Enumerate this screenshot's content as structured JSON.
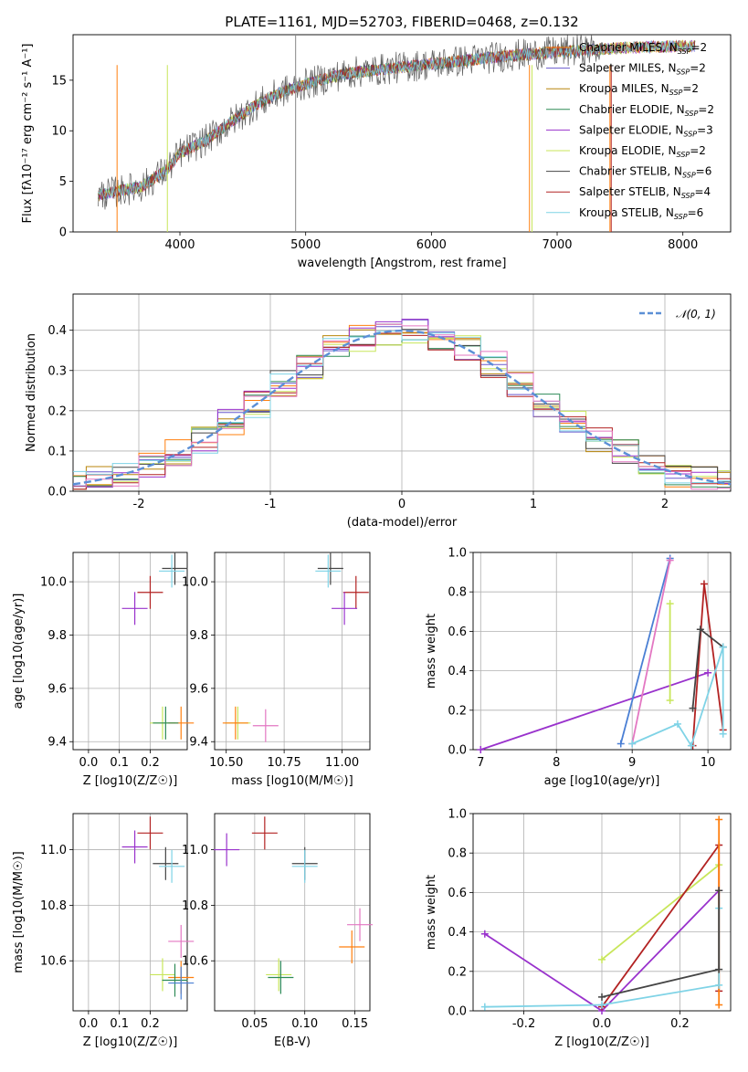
{
  "title": "PLATE=1161, MJD=52703, FIBERID=0468, z=0.132",
  "legend": [
    {
      "label": "Chabrier MILES, N",
      "sub": "SSP",
      "rest": "=2",
      "color": "#ff7f0e"
    },
    {
      "label": "Salpeter MILES, N",
      "sub": "SSP",
      "rest": "=2",
      "color": "#6a5acd"
    },
    {
      "label": "Kroupa MILES, N",
      "sub": "SSP",
      "rest": "=2",
      "color": "#b8860b"
    },
    {
      "label": "Chabrier ELODIE, N",
      "sub": "SSP",
      "rest": "=2",
      "color": "#2e8b57"
    },
    {
      "label": "Salpeter ELODIE, N",
      "sub": "SSP",
      "rest": "=3",
      "color": "#9932cc"
    },
    {
      "label": "Kroupa ELODIE, N",
      "sub": "SSP",
      "rest": "=2",
      "color": "#c8e65a"
    },
    {
      "label": "Chabrier STELIB, N",
      "sub": "SSP",
      "rest": "=6",
      "color": "#444444"
    },
    {
      "label": "Salpeter STELIB, N",
      "sub": "SSP",
      "rest": "=4",
      "color": "#b22222"
    },
    {
      "label": "Kroupa STELIB, N",
      "sub": "SSP",
      "rest": "=6",
      "color": "#7fd3e6"
    }
  ],
  "chart_data": [
    {
      "type": "line",
      "xlabel": "wavelength [Angstrom, rest frame]",
      "ylabel": "Flux [fλ10⁻¹⁷ erg cm⁻² s⁻¹ A⁻¹]",
      "xlim": [
        3150,
        8380
      ],
      "ylim": [
        0,
        19.5
      ],
      "xticks": [
        4000,
        5000,
        6000,
        7000,
        8000
      ],
      "yticks": [
        0,
        5,
        10,
        15
      ],
      "continuum": [
        [
          3350,
          3.6
        ],
        [
          3500,
          4.0
        ],
        [
          3700,
          4.5
        ],
        [
          3900,
          6.2
        ],
        [
          4000,
          7.8
        ],
        [
          4200,
          9.0
        ],
        [
          4400,
          10.8
        ],
        [
          4600,
          12.5
        ],
        [
          4800,
          13.8
        ],
        [
          5000,
          14.6
        ],
        [
          5200,
          15.3
        ],
        [
          5400,
          15.8
        ],
        [
          5700,
          16.2
        ],
        [
          6000,
          16.6
        ],
        [
          6300,
          17.0
        ],
        [
          6600,
          17.4
        ],
        [
          7000,
          17.8
        ],
        [
          7500,
          18.2
        ],
        [
          8100,
          18.4
        ]
      ]
    },
    {
      "type": "line",
      "xlabel": "(data-model)/error",
      "ylabel": "Normed distribution",
      "xlim": [
        -2.5,
        2.5
      ],
      "ylim": [
        0,
        0.49
      ],
      "xticks": [
        -2,
        -1,
        0,
        1,
        2
      ],
      "yticks": [
        0,
        0.1,
        0.2,
        0.3,
        0.4
      ],
      "legend": "𝒩(0, 1)"
    },
    {
      "type": "scatter",
      "xlabel": "Z [log10(Z/Z☉)]",
      "ylabel": "age  [log10(age/yr)]",
      "xlim": [
        -0.05,
        0.32
      ],
      "ylim": [
        9.37,
        10.11
      ],
      "xticks": [
        0,
        0.1,
        0.2
      ],
      "yticks": [
        9.4,
        9.6,
        9.8,
        10.0
      ],
      "points": [
        [
          0.28,
          10.05,
          "#444444"
        ],
        [
          0.27,
          10.04,
          "#7fd3e6"
        ],
        [
          0.2,
          9.96,
          "#b22222"
        ],
        [
          0.15,
          9.9,
          "#9932cc"
        ],
        [
          0.24,
          9.47,
          "#c8e65a"
        ],
        [
          0.3,
          9.47,
          "#ff7f0e"
        ],
        [
          0.25,
          9.47,
          "#2e8b57"
        ]
      ]
    },
    {
      "type": "scatter",
      "xlabel": "mass [log10(M/M☉)]",
      "xlim": [
        10.45,
        11.12
      ],
      "ylim": [
        9.37,
        10.11
      ],
      "xticks": [
        10.5,
        10.75,
        11.0
      ],
      "yticks": [
        9.4,
        9.6,
        9.8,
        10.0
      ],
      "points": [
        [
          10.95,
          10.05,
          "#444444"
        ],
        [
          10.94,
          10.04,
          "#7fd3e6"
        ],
        [
          11.06,
          9.96,
          "#b22222"
        ],
        [
          11.01,
          9.9,
          "#9932cc"
        ],
        [
          10.55,
          9.47,
          "#c8e65a"
        ],
        [
          10.54,
          9.47,
          "#ff7f0e"
        ],
        [
          10.67,
          9.46,
          "#e377c2"
        ]
      ]
    },
    {
      "type": "line",
      "xlabel": "age  [log10(age/yr)]",
      "ylabel": "mass weight",
      "xlim": [
        6.9,
        10.3
      ],
      "ylim": [
        0,
        1
      ],
      "xticks": [
        7,
        8,
        9,
        10
      ],
      "yticks": [
        0,
        0.2,
        0.4,
        0.6,
        0.8,
        1.0
      ],
      "series": [
        {
          "color": "#9932cc",
          "x": [
            7.0,
            10.0
          ],
          "y": [
            0.0,
            0.39
          ]
        },
        {
          "color": "#4a7fd4",
          "x": [
            8.85,
            9.5
          ],
          "y": [
            0.03,
            0.97
          ]
        },
        {
          "color": "#e377c2",
          "x": [
            9.0,
            9.5
          ],
          "y": [
            0.03,
            0.96
          ]
        },
        {
          "color": "#c8e65a",
          "x": [
            9.5,
            9.5
          ],
          "y": [
            0.25,
            0.74
          ]
        },
        {
          "color": "#b22222",
          "x": [
            9.8,
            9.95,
            10.2
          ],
          "y": [
            0.02,
            0.84,
            0.1
          ]
        },
        {
          "color": "#444444",
          "x": [
            9.8,
            9.9,
            10.2
          ],
          "y": [
            0.21,
            0.61,
            0.52
          ]
        },
        {
          "color": "#7fd3e6",
          "x": [
            9.0,
            9.6,
            9.78,
            10.2,
            10.2
          ],
          "y": [
            0.03,
            0.13,
            0.02,
            0.52,
            0.08
          ]
        }
      ]
    },
    {
      "type": "scatter",
      "xlabel": "Z [log10(Z/Z☉)]",
      "ylabel": "mass [log10(M/M☉)]",
      "xlim": [
        -0.05,
        0.32
      ],
      "ylim": [
        10.42,
        11.13
      ],
      "xticks": [
        0,
        0.1,
        0.2
      ],
      "yticks": [
        10.6,
        10.8,
        11.0
      ],
      "points": [
        [
          0.2,
          11.06,
          "#b22222"
        ],
        [
          0.15,
          11.01,
          "#9932cc"
        ],
        [
          0.25,
          10.95,
          "#444444"
        ],
        [
          0.27,
          10.94,
          "#7fd3e6"
        ],
        [
          0.3,
          10.67,
          "#e377c2"
        ],
        [
          0.24,
          10.55,
          "#c8e65a"
        ],
        [
          0.3,
          10.54,
          "#ff7f0e"
        ],
        [
          0.28,
          10.53,
          "#2e8b57"
        ],
        [
          0.3,
          10.52,
          "#4a7fd4"
        ]
      ]
    },
    {
      "type": "scatter",
      "xlabel": "E(B-V)",
      "xlim": [
        0.01,
        0.165
      ],
      "ylim": [
        10.42,
        11.13
      ],
      "xticks": [
        0.05,
        0.1,
        0.15
      ],
      "yticks": [
        10.6,
        10.8,
        11.0
      ],
      "points": [
        [
          0.022,
          11.0,
          "#9932cc"
        ],
        [
          0.06,
          11.06,
          "#b22222"
        ],
        [
          0.1,
          10.95,
          "#444444"
        ],
        [
          0.1,
          10.94,
          "#7fd3e6"
        ],
        [
          0.155,
          10.73,
          "#e377c2"
        ],
        [
          0.147,
          10.65,
          "#ff7f0e"
        ],
        [
          0.074,
          10.55,
          "#c8e65a"
        ],
        [
          0.076,
          10.54,
          "#2e8b57"
        ]
      ]
    },
    {
      "type": "line",
      "xlabel": "Z [log10(Z/Z☉)]",
      "ylabel": "mass weight",
      "xlim": [
        -0.33,
        0.33
      ],
      "ylim": [
        0,
        1
      ],
      "xticks": [
        -0.2,
        0.0,
        0.2
      ],
      "yticks": [
        0,
        0.2,
        0.4,
        0.6,
        0.8,
        1.0
      ],
      "series": [
        {
          "color": "#9932cc",
          "x": [
            -0.3,
            0.0,
            0.3
          ],
          "y": [
            0.39,
            0.0,
            0.61
          ]
        },
        {
          "color": "#c8e65a",
          "x": [
            0.0,
            0.3
          ],
          "y": [
            0.26,
            0.74
          ]
        },
        {
          "color": "#b22222",
          "x": [
            0.0,
            0.3,
            0.3
          ],
          "y": [
            0.02,
            0.84,
            0.1
          ]
        },
        {
          "color": "#ff7f0e",
          "x": [
            0.3,
            0.3
          ],
          "y": [
            0.03,
            0.97
          ]
        },
        {
          "color": "#7fd3e6",
          "x": [
            -0.3,
            0.0,
            0.3,
            0.3
          ],
          "y": [
            0.02,
            0.03,
            0.13,
            0.52
          ]
        },
        {
          "color": "#444444",
          "x": [
            0.0,
            0.3,
            0.3
          ],
          "y": [
            0.07,
            0.21,
            0.61
          ]
        }
      ]
    }
  ]
}
